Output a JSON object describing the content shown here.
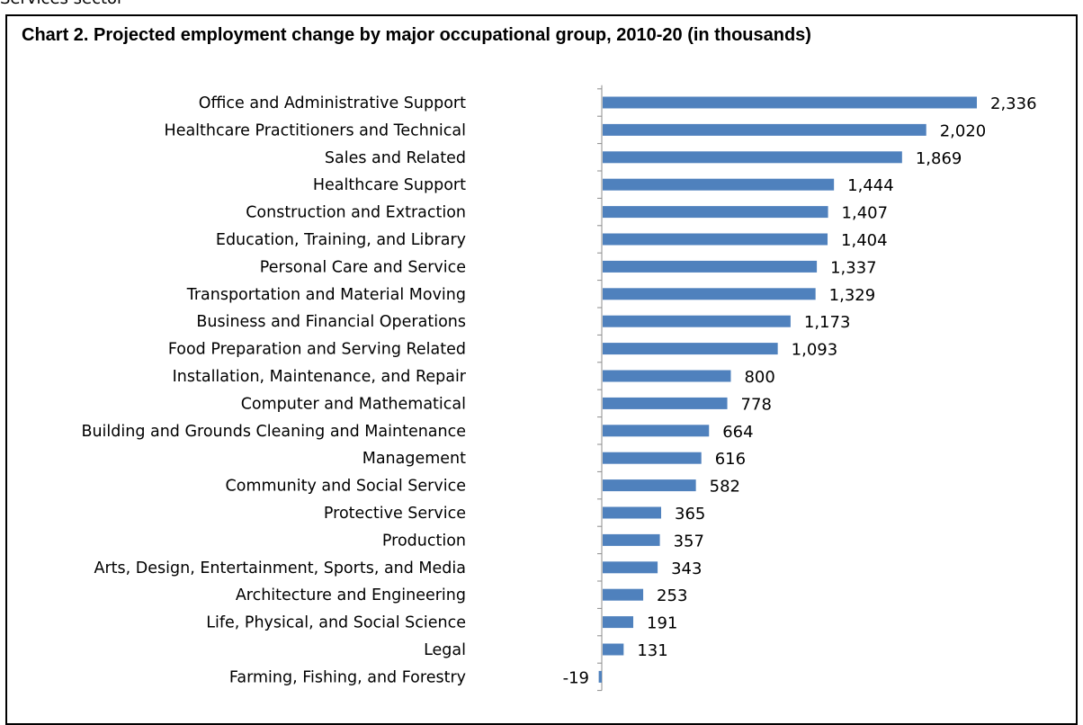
{
  "top_caption": "Services sector",
  "chart_data": {
    "type": "bar",
    "orientation": "horizontal",
    "title": "Chart 2.  Projected employment change by major occupational group, 2010-20 (in thousands)",
    "categories": [
      "Office and Administrative Support",
      "Healthcare Practitioners and Technical",
      "Sales and Related",
      "Healthcare Support",
      "Construction and Extraction",
      "Education, Training, and Library",
      "Personal Care and Service",
      "Transportation and Material Moving",
      "Business and Financial Operations",
      "Food Preparation and Serving Related",
      "Installation, Maintenance, and Repair",
      "Computer and Mathematical",
      "Building and Grounds Cleaning and Maintenance",
      "Management",
      "Community and Social Service",
      "Protective Service",
      "Production",
      "Arts, Design, Entertainment, Sports, and Media",
      "Architecture and Engineering",
      "Life, Physical, and Social Science",
      "Legal",
      "Farming, Fishing, and Forestry"
    ],
    "values": [
      2336,
      2020,
      1869,
      1444,
      1407,
      1404,
      1337,
      1329,
      1173,
      1093,
      800,
      778,
      664,
      616,
      582,
      365,
      357,
      343,
      253,
      191,
      131,
      -19
    ],
    "value_labels": [
      "2,336",
      "2,020",
      "1,869",
      "1,444",
      "1,407",
      "1,404",
      "1,337",
      "1,329",
      "1,173",
      "1,093",
      "800",
      "778",
      "664",
      "616",
      "582",
      "365",
      "357",
      "343",
      "253",
      "191",
      "131",
      "-19"
    ],
    "xlim": [
      -50,
      2400
    ],
    "grid": false,
    "legend": "none",
    "bar_color": "#4f81bd"
  }
}
